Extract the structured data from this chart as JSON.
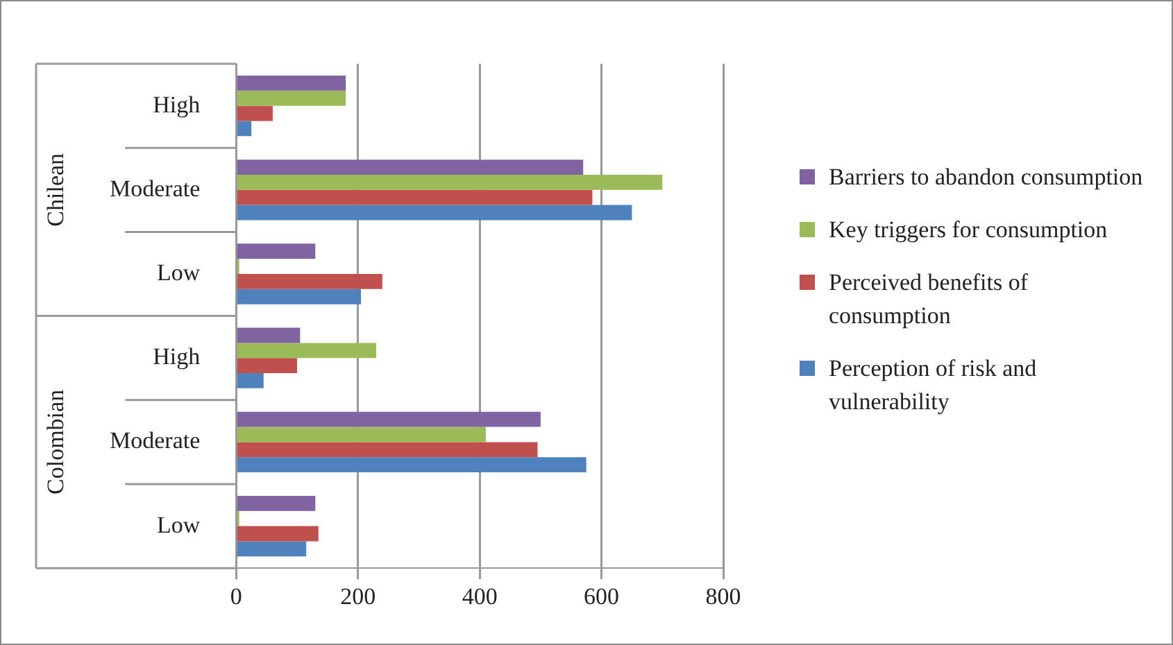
{
  "chart_data": {
    "type": "bar",
    "orientation": "horizontal",
    "categories": [
      "High",
      "Moderate",
      "Low",
      "High",
      "Moderate",
      "Low"
    ],
    "annotations": [
      "Chilean",
      "Colombian"
    ],
    "series": [
      {
        "name": "Barriers to abandon consumption",
        "color": "#8064a2",
        "values": [
          180,
          570,
          130,
          105,
          500,
          130
        ]
      },
      {
        "name": "Key triggers for consumption",
        "color": "#9bbb59",
        "values": [
          180,
          700,
          5,
          230,
          410,
          5
        ]
      },
      {
        "name": "Perceived benefits of consumption",
        "color": "#c0504d",
        "values": [
          60,
          585,
          240,
          100,
          495,
          135
        ]
      },
      {
        "name": "Perception of risk and vulnerability",
        "color": "#4f81bd",
        "values": [
          25,
          650,
          205,
          45,
          575,
          115
        ]
      }
    ],
    "xlim": [
      0,
      800
    ],
    "xticks": [
      0,
      200,
      400,
      600,
      800
    ],
    "grid": "x",
    "legend": "right"
  }
}
